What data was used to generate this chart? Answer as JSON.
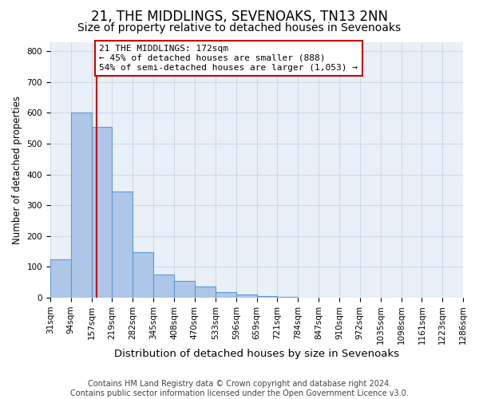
{
  "title1": "21, THE MIDDLINGS, SEVENOAKS, TN13 2NN",
  "title2": "Size of property relative to detached houses in Sevenoaks",
  "xlabel": "Distribution of detached houses by size in Sevenoaks",
  "ylabel": "Number of detached properties",
  "bin_edges": [
    31,
    94,
    157,
    219,
    282,
    345,
    408,
    470,
    533,
    596,
    659,
    721,
    784,
    847,
    910,
    972,
    1035,
    1098,
    1161,
    1223,
    1286
  ],
  "bar_heights": [
    125,
    600,
    555,
    345,
    148,
    75,
    55,
    35,
    18,
    10,
    5,
    3,
    1,
    0,
    0,
    0,
    0,
    0,
    0,
    0
  ],
  "bar_color": "#aec6e8",
  "bar_edgecolor": "#5b9bd5",
  "property_size": 172,
  "annotation_line1": "21 THE MIDDLINGS: 172sqm",
  "annotation_line2": "← 45% of detached houses are smaller (888)",
  "annotation_line3": "54% of semi-detached houses are larger (1,053) →",
  "annotation_box_color": "#ffffff",
  "annotation_box_edgecolor": "#cc0000",
  "vline_color": "#cc0000",
  "ylim": [
    0,
    830
  ],
  "yticks": [
    0,
    100,
    200,
    300,
    400,
    500,
    600,
    700,
    800
  ],
  "grid_color": "#d0d8e8",
  "bg_color": "#eaf0f8",
  "footer": "Contains HM Land Registry data © Crown copyright and database right 2024.\nContains public sector information licensed under the Open Government Licence v3.0.",
  "title1_fontsize": 12,
  "title2_fontsize": 10,
  "xlabel_fontsize": 9.5,
  "ylabel_fontsize": 8.5,
  "tick_fontsize": 7.5,
  "annotation_fontsize": 8,
  "footer_fontsize": 7
}
